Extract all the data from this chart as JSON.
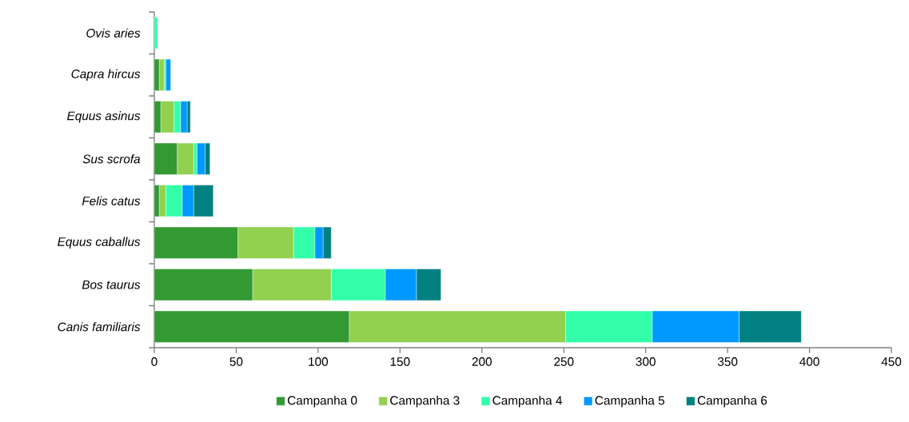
{
  "chart_data": {
    "type": "bar",
    "orientation": "horizontal",
    "stacked": true,
    "categories": [
      "Ovis aries",
      "Capra hircus",
      "Equus asinus",
      "Sus scrofa",
      "Felis catus",
      "Equus caballus",
      "Bos taurus",
      "Canis familiaris"
    ],
    "series": [
      {
        "name": "Campanha 0",
        "color": "#339933",
        "values": [
          0,
          3,
          4,
          14,
          3,
          51,
          60,
          119
        ]
      },
      {
        "name": "Campanha 3",
        "color": "#92d050",
        "values": [
          null,
          3,
          8,
          10,
          4,
          34,
          48,
          132
        ]
      },
      {
        "name": "Campanha 4",
        "color": "#33ffaa",
        "values": [
          2,
          1,
          4,
          2,
          10,
          13,
          33,
          53
        ]
      },
      {
        "name": "Campanha 5",
        "color": "#0099ff",
        "values": [
          0,
          3,
          4,
          5,
          7,
          5,
          19,
          53
        ]
      },
      {
        "name": "Campanha 6",
        "color": "#008080",
        "values": [
          0,
          0,
          2,
          3,
          12,
          5,
          15,
          38
        ]
      }
    ],
    "xlim": [
      0,
      450
    ],
    "xticks": [
      0,
      50,
      100,
      150,
      200,
      250,
      300,
      350,
      400,
      450
    ],
    "grid": false,
    "legend": "bottom"
  }
}
